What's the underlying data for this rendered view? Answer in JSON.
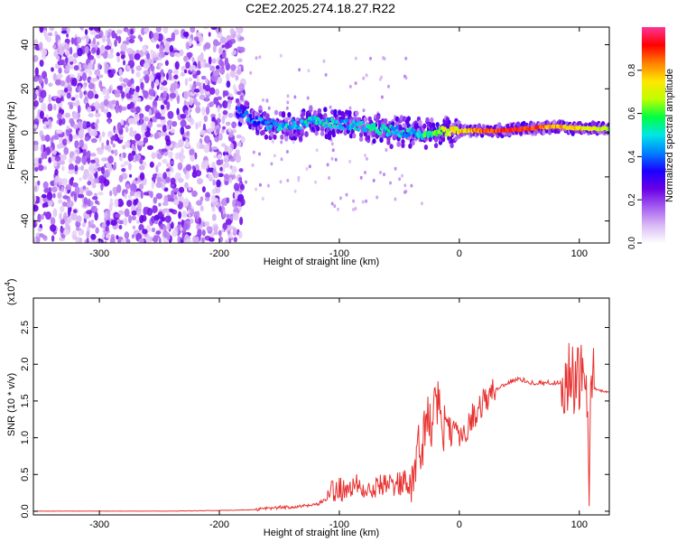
{
  "figure_title": "C2E2.2025.274.18.27.R22",
  "chart_data": [
    {
      "type": "heatmap",
      "xlabel": "Height of straight line (km)",
      "ylabel": "Frequency (Hz)",
      "xlim": [
        -355,
        125
      ],
      "ylim": [
        -50,
        48
      ],
      "x_ticks": [
        -300,
        -200,
        -100,
        0,
        100
      ],
      "x_tick_labels": [
        "-300",
        "-200",
        "-100",
        "0",
        "100"
      ],
      "y_ticks": [
        -40,
        -20,
        0,
        20,
        40
      ],
      "y_tick_labels": [
        "-40",
        "-20",
        "0",
        "20",
        "40"
      ],
      "colorbar": {
        "label": "Normalized spectral amplitude",
        "range": [
          0,
          1
        ],
        "ticks": [
          0.0,
          0.2,
          0.4,
          0.6,
          0.8
        ],
        "tick_labels": [
          "0.0",
          "0.2",
          "0.4",
          "0.6",
          "0.8"
        ],
        "colormap": [
          "#ffffff",
          "#d9b8f4",
          "#a45cf0",
          "#6a00e6",
          "#1a00ff",
          "#0080ff",
          "#00e6e6",
          "#00ff40",
          "#bfff00",
          "#ffe600",
          "#ff8000",
          "#ff0000",
          "#ff3399"
        ]
      },
      "ridge": {
        "x": [
          -185,
          -170,
          -150,
          -120,
          -100,
          -80,
          -60,
          -40,
          -30,
          -20,
          0,
          30,
          60,
          80,
          100,
          125
        ],
        "freq": [
          10,
          5,
          3,
          5,
          4,
          3,
          1,
          0,
          -1,
          1,
          1,
          1,
          2,
          3,
          2,
          2
        ],
        "amplitude": [
          0.35,
          0.4,
          0.45,
          0.5,
          0.45,
          0.5,
          0.5,
          0.45,
          0.55,
          0.6,
          0.75,
          0.9,
          0.9,
          0.8,
          0.75,
          0.65
        ]
      },
      "noise_region": [
        -355,
        -185
      ]
    },
    {
      "type": "line",
      "xlabel": "Height of straight line (km)",
      "ylabel": "SNR (10 * v/v)",
      "y_multiplier_label": "(x10",
      "y_multiplier_exp": "4",
      "y_multiplier_close": ")",
      "xlim": [
        -355,
        125
      ],
      "ylim": [
        -0.05,
        2.9
      ],
      "x_ticks": [
        -300,
        -200,
        -100,
        0,
        100
      ],
      "x_tick_labels": [
        "-300",
        "-200",
        "-100",
        "0",
        "100"
      ],
      "y_ticks": [
        0.0,
        0.5,
        1.0,
        1.5,
        2.0,
        2.5
      ],
      "y_tick_labels": [
        "0.0",
        "0.5",
        "1.0",
        "1.5",
        "2.0",
        "2.5"
      ],
      "color": "#e8312f",
      "series": [
        {
          "name": "SNR",
          "x": [
            -355,
            -300,
            -250,
            -200,
            -170,
            -150,
            -120,
            -100,
            -80,
            -60,
            -40,
            -30,
            -20,
            -10,
            0,
            10,
            20,
            30,
            40,
            50,
            60,
            70,
            80,
            90,
            95,
            100,
            105,
            108,
            110,
            115,
            125
          ],
          "y": [
            0.0,
            0.0,
            0.0,
            0.01,
            0.02,
            0.05,
            0.08,
            0.25,
            0.35,
            0.35,
            0.45,
            1.0,
            1.4,
            1.1,
            1.0,
            1.25,
            1.5,
            1.65,
            1.75,
            1.8,
            1.75,
            1.75,
            1.75,
            1.75,
            1.8,
            1.7,
            1.8,
            0.4,
            1.7,
            1.65,
            1.62
          ]
        }
      ]
    }
  ]
}
